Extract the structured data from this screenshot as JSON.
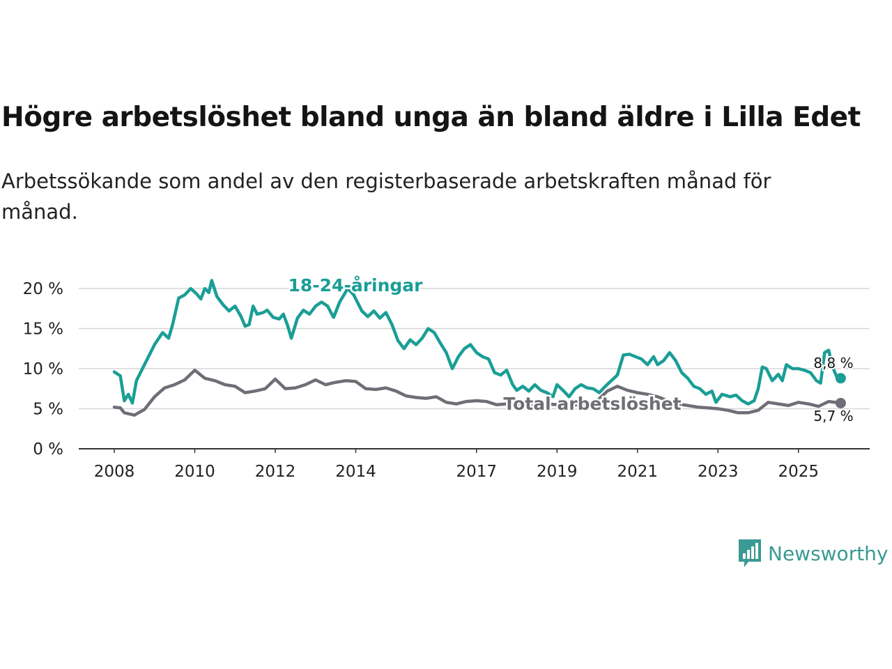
{
  "title": "Högre arbetslöshet bland unga än bland äldre i Lilla Edet",
  "subtitle": "Arbetssökande som andel av den registerbaserade arbetskraften månad för månad.",
  "brand": {
    "name": "Newsworthy",
    "color": "#3a9a94",
    "logo_icon": "bar-chart-speech-bubble-icon"
  },
  "chart_data": {
    "type": "line",
    "title": "Högre arbetslöshet bland unga än bland äldre i Lilla Edet",
    "xlabel": "",
    "ylabel": "",
    "xlim": [
      2008.0,
      2026.15
    ],
    "ylim": [
      0,
      20
    ],
    "yticks": [
      0,
      5,
      10,
      15,
      20
    ],
    "ytick_labels": [
      "0 %",
      "5 %",
      "10 %",
      "15 %",
      "20 %"
    ],
    "xticks": [
      2008,
      2010,
      2012,
      2014,
      2017,
      2019,
      2021,
      2023,
      2025
    ],
    "xtick_labels": [
      "2008",
      "2010",
      "2012",
      "2014",
      "2017",
      "2019",
      "2021",
      "2023",
      "2025"
    ],
    "grid": true,
    "series": [
      {
        "name": "18-24-åringar",
        "label": "18-24-åringar",
        "color": "#1a9e96",
        "end_label": "8,8 %",
        "points": [
          [
            2008.0,
            9.6
          ],
          [
            2008.15,
            9.1
          ],
          [
            2008.25,
            6.0
          ],
          [
            2008.35,
            6.8
          ],
          [
            2008.45,
            5.7
          ],
          [
            2008.55,
            8.5
          ],
          [
            2008.7,
            10.0
          ],
          [
            2008.85,
            11.5
          ],
          [
            2009.0,
            13.0
          ],
          [
            2009.2,
            14.5
          ],
          [
            2009.35,
            13.8
          ],
          [
            2009.45,
            15.5
          ],
          [
            2009.6,
            18.8
          ],
          [
            2009.75,
            19.2
          ],
          [
            2009.9,
            20.0
          ],
          [
            2010.05,
            19.3
          ],
          [
            2010.15,
            18.7
          ],
          [
            2010.25,
            20.0
          ],
          [
            2010.35,
            19.5
          ],
          [
            2010.42,
            21.0
          ],
          [
            2010.55,
            19.0
          ],
          [
            2010.7,
            18.0
          ],
          [
            2010.85,
            17.2
          ],
          [
            2011.0,
            17.8
          ],
          [
            2011.15,
            16.5
          ],
          [
            2011.25,
            15.3
          ],
          [
            2011.35,
            15.5
          ],
          [
            2011.45,
            17.8
          ],
          [
            2011.55,
            16.8
          ],
          [
            2011.7,
            17.0
          ],
          [
            2011.8,
            17.3
          ],
          [
            2011.95,
            16.4
          ],
          [
            2012.1,
            16.2
          ],
          [
            2012.2,
            16.8
          ],
          [
            2012.3,
            15.5
          ],
          [
            2012.4,
            13.8
          ],
          [
            2012.55,
            16.3
          ],
          [
            2012.7,
            17.3
          ],
          [
            2012.85,
            16.8
          ],
          [
            2013.0,
            17.8
          ],
          [
            2013.15,
            18.3
          ],
          [
            2013.3,
            17.8
          ],
          [
            2013.45,
            16.4
          ],
          [
            2013.6,
            18.3
          ],
          [
            2013.8,
            20.0
          ],
          [
            2013.95,
            19.2
          ],
          [
            2014.15,
            17.2
          ],
          [
            2014.3,
            16.5
          ],
          [
            2014.45,
            17.2
          ],
          [
            2014.6,
            16.3
          ],
          [
            2014.75,
            17.0
          ],
          [
            2014.9,
            15.5
          ],
          [
            2015.05,
            13.5
          ],
          [
            2015.2,
            12.5
          ],
          [
            2015.35,
            13.6
          ],
          [
            2015.5,
            13.0
          ],
          [
            2015.65,
            13.8
          ],
          [
            2015.8,
            15.0
          ],
          [
            2015.95,
            14.5
          ],
          [
            2016.1,
            13.2
          ],
          [
            2016.25,
            12.0
          ],
          [
            2016.4,
            10.0
          ],
          [
            2016.55,
            11.5
          ],
          [
            2016.7,
            12.5
          ],
          [
            2016.85,
            13.0
          ],
          [
            2017.0,
            12.0
          ],
          [
            2017.15,
            11.5
          ],
          [
            2017.3,
            11.2
          ],
          [
            2017.45,
            9.5
          ],
          [
            2017.6,
            9.2
          ],
          [
            2017.75,
            9.8
          ],
          [
            2017.9,
            8.0
          ],
          [
            2018.0,
            7.3
          ],
          [
            2018.15,
            7.8
          ],
          [
            2018.3,
            7.2
          ],
          [
            2018.45,
            8.0
          ],
          [
            2018.6,
            7.3
          ],
          [
            2018.75,
            7.0
          ],
          [
            2018.9,
            6.5
          ],
          [
            2019.0,
            8.0
          ],
          [
            2019.15,
            7.3
          ],
          [
            2019.3,
            6.5
          ],
          [
            2019.45,
            7.5
          ],
          [
            2019.6,
            8.0
          ],
          [
            2019.75,
            7.6
          ],
          [
            2019.9,
            7.5
          ],
          [
            2020.05,
            7.0
          ],
          [
            2020.2,
            7.8
          ],
          [
            2020.35,
            8.5
          ],
          [
            2020.5,
            9.2
          ],
          [
            2020.65,
            11.7
          ],
          [
            2020.8,
            11.8
          ],
          [
            2020.95,
            11.5
          ],
          [
            2021.1,
            11.2
          ],
          [
            2021.25,
            10.5
          ],
          [
            2021.4,
            11.5
          ],
          [
            2021.5,
            10.5
          ],
          [
            2021.65,
            11.0
          ],
          [
            2021.8,
            12.0
          ],
          [
            2021.95,
            11.0
          ],
          [
            2022.1,
            9.5
          ],
          [
            2022.25,
            8.8
          ],
          [
            2022.4,
            7.8
          ],
          [
            2022.55,
            7.5
          ],
          [
            2022.7,
            6.8
          ],
          [
            2022.85,
            7.2
          ],
          [
            2022.95,
            5.8
          ],
          [
            2023.1,
            6.8
          ],
          [
            2023.3,
            6.5
          ],
          [
            2023.45,
            6.7
          ],
          [
            2023.6,
            6.0
          ],
          [
            2023.75,
            5.6
          ],
          [
            2023.9,
            6.0
          ],
          [
            2024.0,
            7.5
          ],
          [
            2024.1,
            10.2
          ],
          [
            2024.2,
            10.0
          ],
          [
            2024.35,
            8.5
          ],
          [
            2024.5,
            9.3
          ],
          [
            2024.6,
            8.5
          ],
          [
            2024.7,
            10.5
          ],
          [
            2024.85,
            10.0
          ],
          [
            2025.0,
            10.0
          ],
          [
            2025.15,
            9.8
          ],
          [
            2025.3,
            9.5
          ],
          [
            2025.45,
            8.5
          ],
          [
            2025.55,
            8.2
          ],
          [
            2025.65,
            12.0
          ],
          [
            2025.75,
            12.3
          ],
          [
            2025.85,
            10.2
          ],
          [
            2025.95,
            9.0
          ],
          [
            2026.05,
            8.8
          ]
        ]
      },
      {
        "name": "Total arbetslöshet",
        "label": "Total arbetslöshet",
        "color": "#6e6e76",
        "end_label": "5,7 %",
        "points": [
          [
            2008.0,
            5.2
          ],
          [
            2008.15,
            5.1
          ],
          [
            2008.25,
            4.5
          ],
          [
            2008.5,
            4.2
          ],
          [
            2008.75,
            4.9
          ],
          [
            2009.0,
            6.5
          ],
          [
            2009.25,
            7.6
          ],
          [
            2009.5,
            8.0
          ],
          [
            2009.75,
            8.6
          ],
          [
            2010.0,
            9.8
          ],
          [
            2010.25,
            8.8
          ],
          [
            2010.5,
            8.5
          ],
          [
            2010.75,
            8.0
          ],
          [
            2011.0,
            7.8
          ],
          [
            2011.25,
            7.0
          ],
          [
            2011.5,
            7.2
          ],
          [
            2011.75,
            7.5
          ],
          [
            2012.0,
            8.7
          ],
          [
            2012.25,
            7.5
          ],
          [
            2012.5,
            7.6
          ],
          [
            2012.75,
            8.0
          ],
          [
            2013.0,
            8.6
          ],
          [
            2013.25,
            8.0
          ],
          [
            2013.5,
            8.3
          ],
          [
            2013.75,
            8.5
          ],
          [
            2014.0,
            8.4
          ],
          [
            2014.25,
            7.5
          ],
          [
            2014.5,
            7.4
          ],
          [
            2014.75,
            7.6
          ],
          [
            2015.0,
            7.2
          ],
          [
            2015.25,
            6.6
          ],
          [
            2015.5,
            6.4
          ],
          [
            2015.75,
            6.3
          ],
          [
            2016.0,
            6.5
          ],
          [
            2016.25,
            5.8
          ],
          [
            2016.5,
            5.6
          ],
          [
            2016.75,
            5.9
          ],
          [
            2017.0,
            6.0
          ],
          [
            2017.25,
            5.9
          ],
          [
            2017.5,
            5.5
          ],
          [
            2017.75,
            5.6
          ],
          [
            2018.0,
            5.5
          ],
          [
            2018.25,
            5.4
          ],
          [
            2018.5,
            5.3
          ],
          [
            2018.75,
            5.6
          ],
          [
            2019.0,
            5.5
          ],
          [
            2019.25,
            5.4
          ],
          [
            2019.5,
            5.5
          ],
          [
            2019.75,
            5.6
          ],
          [
            2020.0,
            6.0
          ],
          [
            2020.25,
            7.2
          ],
          [
            2020.5,
            7.8
          ],
          [
            2020.75,
            7.3
          ],
          [
            2021.0,
            7.0
          ],
          [
            2021.25,
            6.8
          ],
          [
            2021.5,
            6.5
          ],
          [
            2021.75,
            6.0
          ],
          [
            2022.0,
            5.6
          ],
          [
            2022.25,
            5.4
          ],
          [
            2022.5,
            5.2
          ],
          [
            2022.75,
            5.1
          ],
          [
            2023.0,
            5.0
          ],
          [
            2023.25,
            4.8
          ],
          [
            2023.5,
            4.5
          ],
          [
            2023.75,
            4.5
          ],
          [
            2024.0,
            4.8
          ],
          [
            2024.25,
            5.8
          ],
          [
            2024.5,
            5.6
          ],
          [
            2024.75,
            5.4
          ],
          [
            2025.0,
            5.8
          ],
          [
            2025.25,
            5.6
          ],
          [
            2025.5,
            5.3
          ],
          [
            2025.75,
            5.9
          ],
          [
            2026.05,
            5.7
          ]
        ]
      }
    ]
  }
}
